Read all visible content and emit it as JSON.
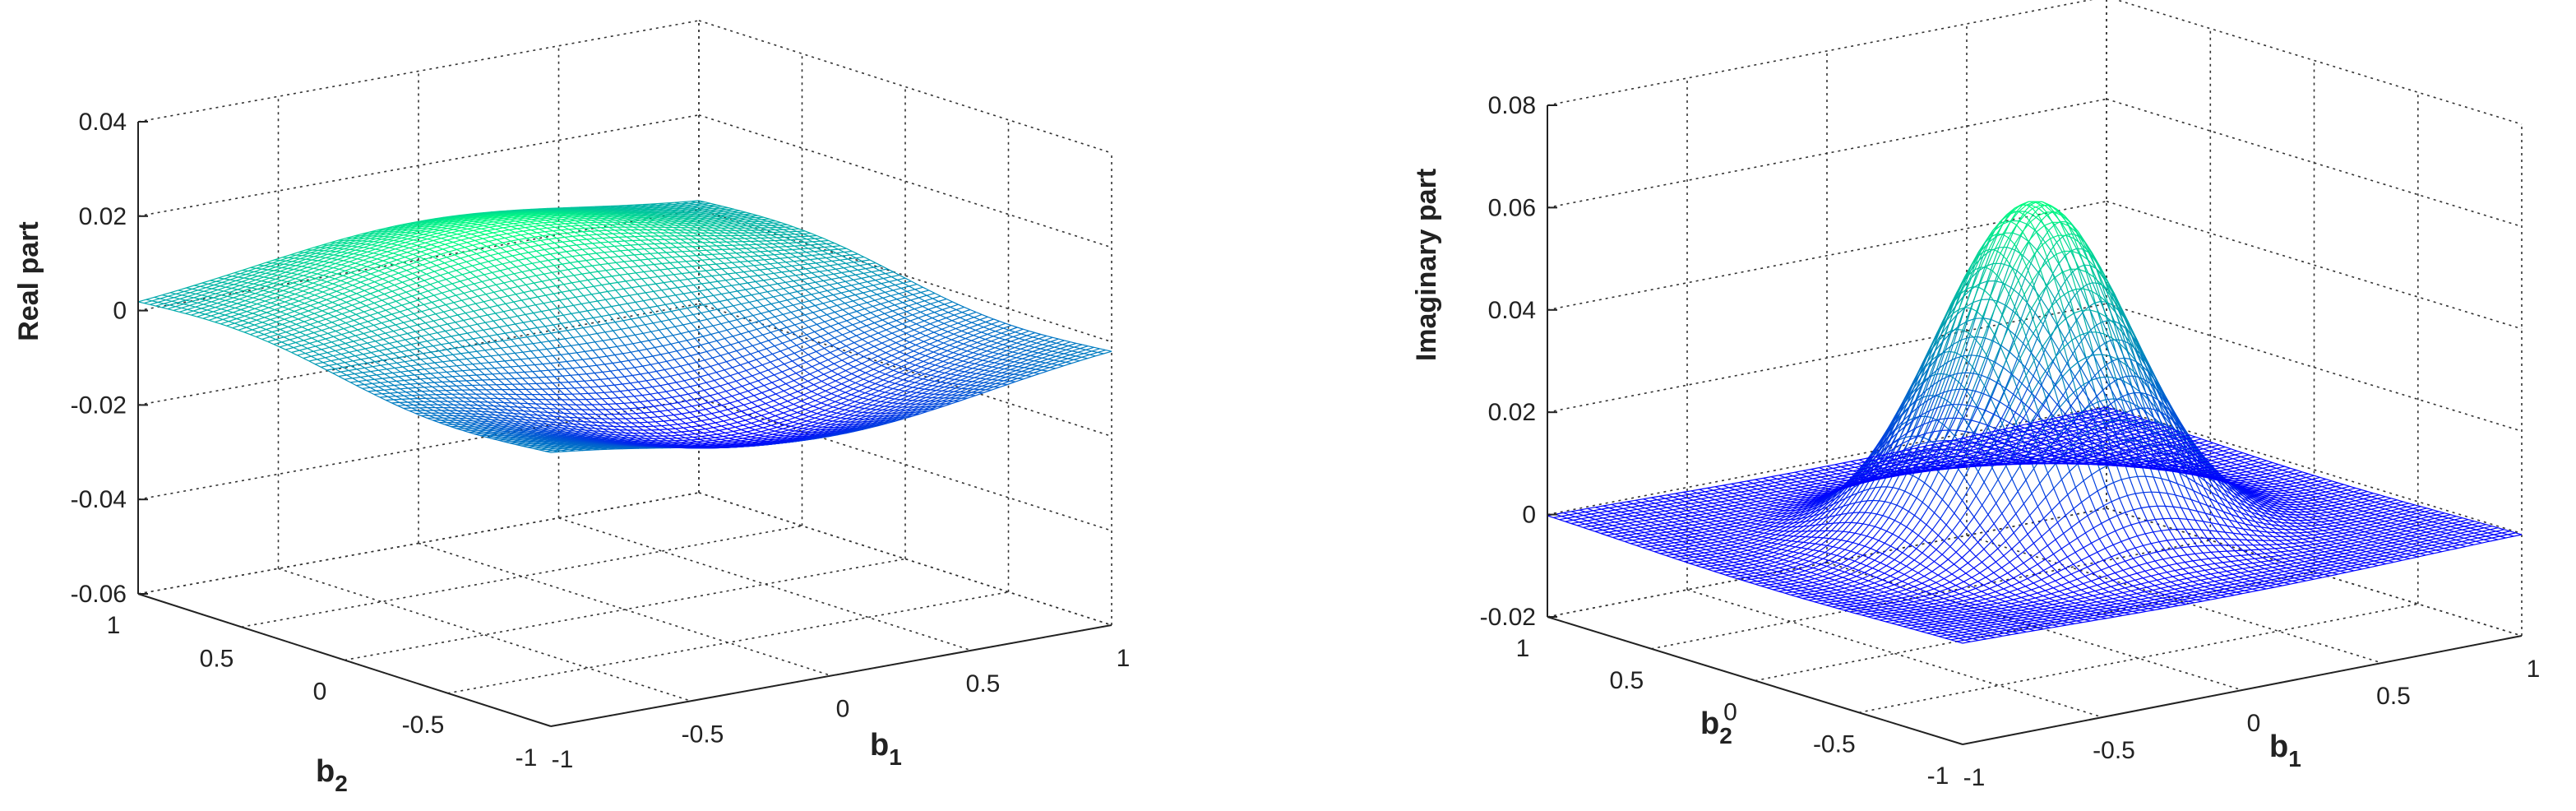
{
  "chart_data": [
    {
      "type": "surface-mesh",
      "zlabel": "Real part",
      "xlabel": "b",
      "xlabel_sub": "1",
      "ylabel": "b",
      "ylabel_sub": "2",
      "xlim": [
        -1,
        1
      ],
      "ylim": [
        -1,
        1
      ],
      "zlim": [
        -0.06,
        0.04
      ],
      "x_ticks": [
        "-1",
        "-0.5",
        "0",
        "0.5",
        "1"
      ],
      "y_ticks": [
        "-1",
        "-0.5",
        "0",
        "0.5",
        "1"
      ],
      "z_ticks": [
        "-0.06",
        "-0.04",
        "-0.02",
        "0",
        "0.02",
        "0.04"
      ],
      "x_tick_values": [
        -1,
        -0.5,
        0,
        0.5,
        1
      ],
      "y_tick_values": [
        -1,
        -0.5,
        0,
        0.5,
        1
      ],
      "z_tick_values": [
        -0.06,
        -0.04,
        -0.02,
        0,
        0.02,
        0.04
      ],
      "grid": true,
      "colormap": "winter",
      "surface": {
        "description": "bump along -b2 to +b2 diagonal: positive peak (~0.03) at b2>0, negative trough (~-0.047) at b2<0",
        "peak_value": 0.03,
        "trough_value": -0.047
      }
    },
    {
      "type": "surface-mesh",
      "zlabel": "Imaginary part",
      "xlabel": "b",
      "xlabel_sub": "1",
      "ylabel": "b",
      "ylabel_sub": "2",
      "xlim": [
        -1,
        1
      ],
      "ylim": [
        -1,
        1
      ],
      "zlim": [
        -0.02,
        0.08
      ],
      "x_ticks": [
        "-1",
        "-0.5",
        "0",
        "0.5",
        "1"
      ],
      "y_ticks": [
        "-1",
        "-0.5",
        "0",
        "0.5",
        "1"
      ],
      "z_ticks": [
        "-0.02",
        "0",
        "0.02",
        "0.04",
        "0.06",
        "0.08"
      ],
      "x_tick_values": [
        -1,
        -0.5,
        0,
        0.5,
        1
      ],
      "y_tick_values": [
        -1,
        -0.5,
        0,
        0.5,
        1
      ],
      "z_tick_values": [
        -0.02,
        0,
        0.02,
        0.04,
        0.06,
        0.08
      ],
      "grid": true,
      "colormap": "winter",
      "surface": {
        "description": "gaussian peak centered at origin (~0.063) with slight negative ring (~-0.008)",
        "peak_value": 0.063,
        "ring_value": -0.008
      }
    }
  ]
}
